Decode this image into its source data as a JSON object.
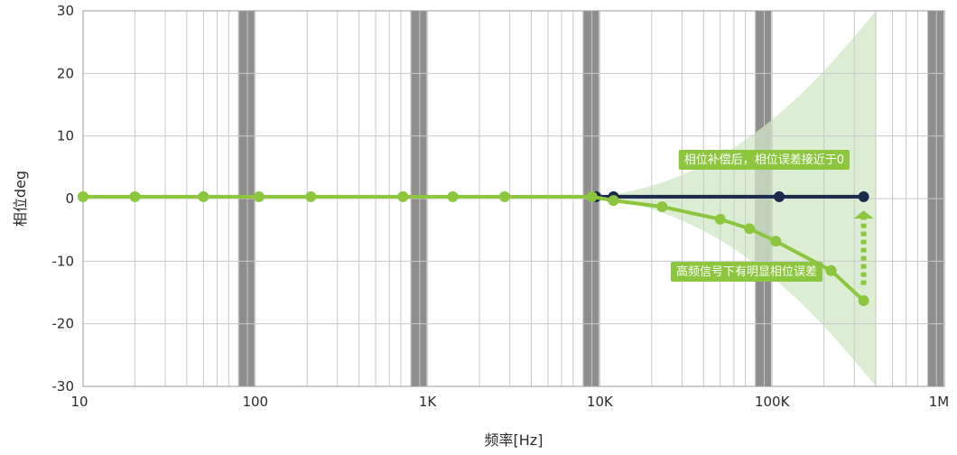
{
  "chart_data": {
    "type": "line",
    "xscale": "log",
    "xlim": [
      10,
      1000000
    ],
    "ylim": [
      -30,
      30
    ],
    "yticks": [
      -30,
      -20,
      -10,
      0,
      10,
      20,
      30
    ],
    "xtick_values": [
      10,
      100,
      1000,
      10000,
      100000,
      1000000
    ],
    "xtick_labels": [
      "10",
      "100",
      "1K",
      "10K",
      "100K",
      "1M"
    ],
    "xlabel": "频率[Hz]",
    "ylabel": "相位deg",
    "grid": true,
    "decade_band_color": "#8e8e8e",
    "series": [
      {
        "color": "#1b2a4a",
        "points": [
          [
            9500,
            0.3
          ],
          [
            12000,
            0.3
          ],
          [
            110000,
            0.3
          ],
          [
            340000,
            0.3
          ]
        ]
      },
      {
        "color": "#8cc63f",
        "points": [
          [
            10,
            0.3
          ],
          [
            20,
            0.3
          ],
          [
            50,
            0.3
          ],
          [
            105,
            0.3
          ],
          [
            210,
            0.3
          ],
          [
            720,
            0.3
          ],
          [
            1400,
            0.3
          ],
          [
            2800,
            0.3
          ],
          [
            9000,
            0.3
          ],
          [
            12000,
            -0.3
          ],
          [
            23000,
            -1.3
          ],
          [
            50000,
            -3.3
          ],
          [
            74000,
            -4.8
          ],
          [
            105000,
            -6.8
          ],
          [
            220000,
            -11.5
          ],
          [
            340000,
            -16.3
          ]
        ]
      }
    ],
    "annotations": {
      "after": "相位补偿后，相位误差接近于0",
      "before": "高频信号下有明显相位误差"
    },
    "colors": {
      "green": "#8cc63f",
      "navy": "#1b2a4a",
      "fan": "#cfe8c4",
      "grid": "#c8c8c8",
      "frame": "#9a9a9a"
    }
  }
}
